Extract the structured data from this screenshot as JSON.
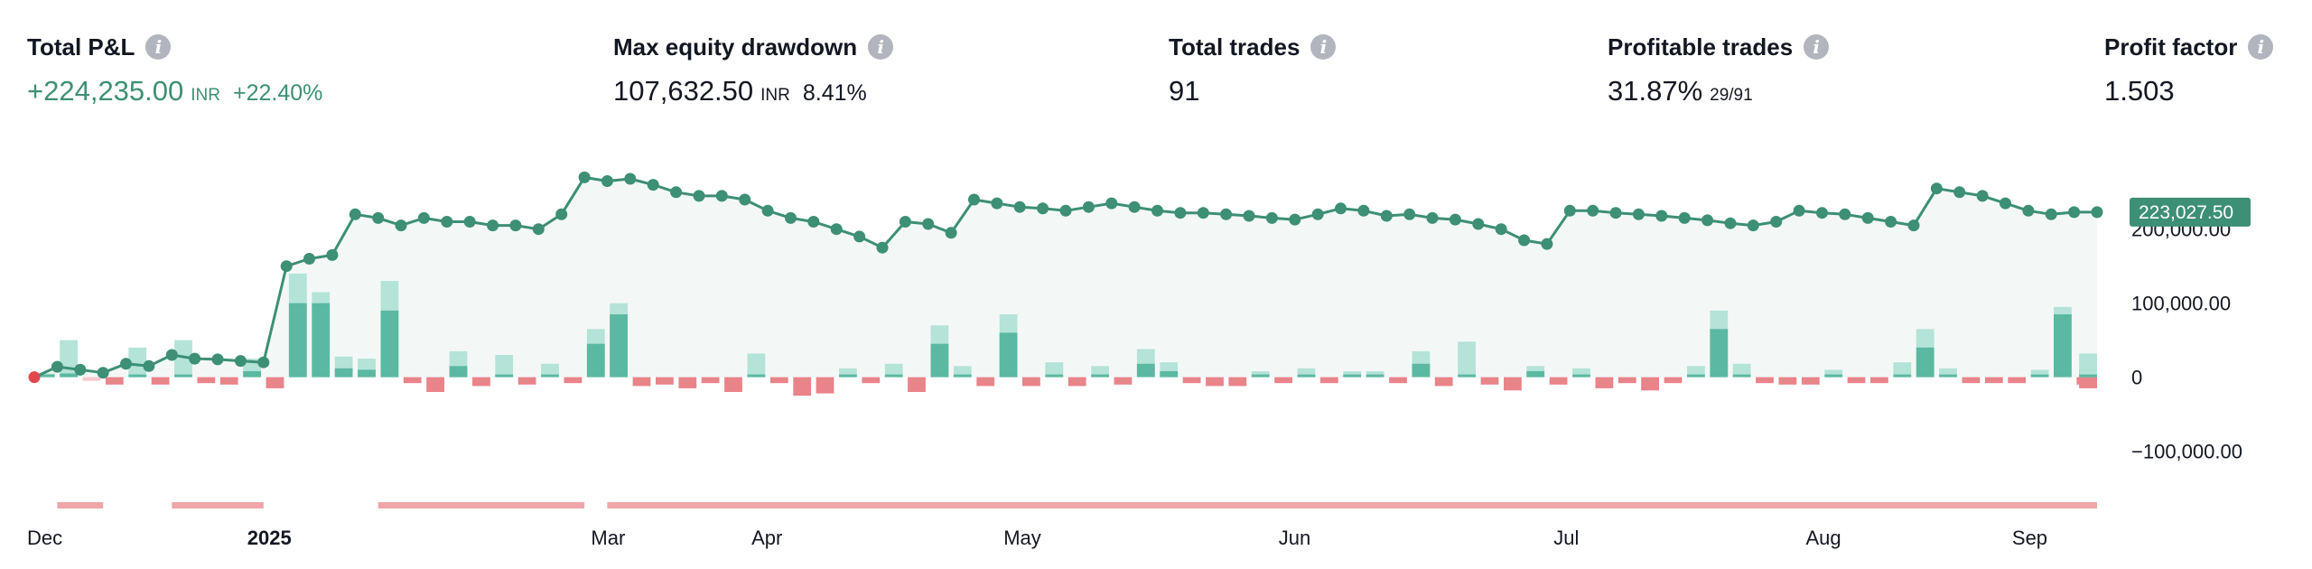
{
  "stats": {
    "total_pnl": {
      "label": "Total P&L",
      "value": "+224,235.00",
      "unit": "INR",
      "percent": "+22.40%"
    },
    "max_drawdown": {
      "label": "Max equity drawdown",
      "value": "107,632.50",
      "unit": "INR",
      "percent": "8.41%"
    },
    "total_trades": {
      "label": "Total trades",
      "value": "91"
    },
    "profitable_trades": {
      "label": "Profitable trades",
      "value": "31.87%",
      "sub": "29/91"
    },
    "profit_factor": {
      "label": "Profit factor",
      "value": "1.503"
    }
  },
  "icons": {
    "info": "info-icon"
  },
  "colors": {
    "equity": "#3d8f75",
    "equity_fill": "#f3f8f6",
    "bar_up": "#5bb9a1",
    "bar_up_light": "#b4e3d8",
    "bar_down": "#e8848a",
    "bar_down_light": "#f6cbce",
    "drawdown_strip": "#f0a6a8",
    "last_marker": "#3d8f75",
    "start_marker": "#e0484e"
  },
  "chart_data": {
    "type": "line",
    "title": "",
    "y_ticks": [
      "200,000.00",
      "100,000.00",
      "0",
      "−100,000.00"
    ],
    "y_tick_values": [
      200000,
      100000,
      0,
      -100000
    ],
    "ylim": [
      -125000,
      290000
    ],
    "x_months": [
      {
        "label": "Dec",
        "bold": false,
        "index": 0
      },
      {
        "label": "2025",
        "bold": true,
        "index": 10
      },
      {
        "label": "Mar",
        "bold": false,
        "index": 25
      },
      {
        "label": "Apr",
        "bold": false,
        "index": 32
      },
      {
        "label": "May",
        "bold": false,
        "index": 43
      },
      {
        "label": "Jun",
        "bold": false,
        "index": 55
      },
      {
        "label": "Jul",
        "bold": false,
        "index": 67
      },
      {
        "label": "Aug",
        "bold": false,
        "index": 78
      },
      {
        "label": "Sep",
        "bold": false,
        "index": 87
      }
    ],
    "last_value_label": "223,027.50",
    "equity": [
      0,
      14000,
      10000,
      6000,
      18000,
      15000,
      30000,
      25000,
      24000,
      22000,
      20000,
      150000,
      160000,
      165000,
      220000,
      215000,
      205000,
      215000,
      210000,
      210000,
      205000,
      205000,
      200000,
      220000,
      270000,
      265000,
      268000,
      260000,
      250000,
      245000,
      245000,
      240000,
      225000,
      215000,
      210000,
      200000,
      190000,
      175000,
      210000,
      207000,
      195000,
      240000,
      235000,
      230000,
      228000,
      225000,
      230000,
      235000,
      230000,
      225000,
      222000,
      222000,
      220000,
      218000,
      215000,
      213000,
      220000,
      228000,
      225000,
      218000,
      220000,
      215000,
      213000,
      207000,
      200000,
      185000,
      180000,
      225000,
      225000,
      222000,
      220000,
      218000,
      215000,
      212000,
      208000,
      205000,
      210000,
      225000,
      222000,
      220000,
      215000,
      210000,
      205000,
      255000,
      250000,
      245000,
      235000,
      225000,
      220000,
      223000,
      223027.5
    ],
    "bars": [
      {
        "dark": 0,
        "light": 5000
      },
      {
        "dark": 5000,
        "light": 50000
      },
      {
        "dark": 0,
        "light": -5000
      },
      {
        "dark": -10000,
        "light": 0
      },
      {
        "dark": 0,
        "light": 40000
      },
      {
        "dark": -10000,
        "light": 0
      },
      {
        "dark": 0,
        "light": 50000
      },
      {
        "dark": -8000,
        "light": 0
      },
      {
        "dark": -10000,
        "light": 0
      },
      {
        "dark": 8000,
        "light": 25000
      },
      {
        "dark": -15000,
        "light": 0
      },
      {
        "dark": 100000,
        "light": 140000
      },
      {
        "dark": 100000,
        "light": 115000
      },
      {
        "dark": 12000,
        "light": 28000
      },
      {
        "dark": 10000,
        "light": 25000
      },
      {
        "dark": 90000,
        "light": 130000
      },
      {
        "dark": -8000,
        "light": 0
      },
      {
        "dark": -20000,
        "light": 0
      },
      {
        "dark": 15000,
        "light": 35000
      },
      {
        "dark": -12000,
        "light": 0
      },
      {
        "dark": 0,
        "light": 30000
      },
      {
        "dark": -10000,
        "light": 0
      },
      {
        "dark": 0,
        "light": 18000
      },
      {
        "dark": -8000,
        "light": 0
      },
      {
        "dark": 45000,
        "light": 65000
      },
      {
        "dark": 85000,
        "light": 100000
      },
      {
        "dark": -12000,
        "light": 0
      },
      {
        "dark": -10000,
        "light": 0
      },
      {
        "dark": -15000,
        "light": 0
      },
      {
        "dark": -8000,
        "light": 0
      },
      {
        "dark": -20000,
        "light": 0
      },
      {
        "dark": 0,
        "light": 32000
      },
      {
        "dark": -8000,
        "light": 0
      },
      {
        "dark": -25000,
        "light": 0
      },
      {
        "dark": -22000,
        "light": 0
      },
      {
        "dark": 0,
        "light": 12000
      },
      {
        "dark": -8000,
        "light": 0
      },
      {
        "dark": 0,
        "light": 18000
      },
      {
        "dark": -20000,
        "light": 0
      },
      {
        "dark": 45000,
        "light": 70000
      },
      {
        "dark": 0,
        "light": 15000
      },
      {
        "dark": -12000,
        "light": 0
      },
      {
        "dark": 60000,
        "light": 85000
      },
      {
        "dark": -12000,
        "light": 0
      },
      {
        "dark": 0,
        "light": 20000
      },
      {
        "dark": -12000,
        "light": 0
      },
      {
        "dark": 0,
        "light": 15000
      },
      {
        "dark": -10000,
        "light": 0
      },
      {
        "dark": 18000,
        "light": 38000
      },
      {
        "dark": 8000,
        "light": 20000
      },
      {
        "dark": -8000,
        "light": 0
      },
      {
        "dark": -12000,
        "light": 0
      },
      {
        "dark": -12000,
        "light": 0
      },
      {
        "dark": 0,
        "light": 8000
      },
      {
        "dark": -8000,
        "light": 0
      },
      {
        "dark": 0,
        "light": 12000
      },
      {
        "dark": -8000,
        "light": 0
      },
      {
        "dark": 0,
        "light": 8000
      },
      {
        "dark": 0,
        "light": 8000
      },
      {
        "dark": -8000,
        "light": 0
      },
      {
        "dark": 18000,
        "light": 35000
      },
      {
        "dark": -12000,
        "light": 0
      },
      {
        "dark": 0,
        "light": 48000
      },
      {
        "dark": -10000,
        "light": 0
      },
      {
        "dark": -18000,
        "light": 0
      },
      {
        "dark": 8000,
        "light": 15000
      },
      {
        "dark": -10000,
        "light": 0
      },
      {
        "dark": 0,
        "light": 12000
      },
      {
        "dark": -15000,
        "light": 0
      },
      {
        "dark": -8000,
        "light": 0
      },
      {
        "dark": -18000,
        "light": 0
      },
      {
        "dark": -8000,
        "light": 0
      },
      {
        "dark": 0,
        "light": 15000
      },
      {
        "dark": 65000,
        "light": 90000
      },
      {
        "dark": 0,
        "light": 18000
      },
      {
        "dark": -8000,
        "light": 0
      },
      {
        "dark": -10000,
        "light": 0
      },
      {
        "dark": -10000,
        "light": 0
      },
      {
        "dark": 0,
        "light": 10000
      },
      {
        "dark": -8000,
        "light": 0
      },
      {
        "dark": -8000,
        "light": 0
      },
      {
        "dark": 0,
        "light": 20000
      },
      {
        "dark": 40000,
        "light": 65000
      },
      {
        "dark": 0,
        "light": 12000
      },
      {
        "dark": -8000,
        "light": 0
      },
      {
        "dark": -8000,
        "light": 0
      },
      {
        "dark": -8000,
        "light": 0
      },
      {
        "dark": 0,
        "light": 10000
      },
      {
        "dark": 85000,
        "light": 95000
      },
      {
        "dark": -10000,
        "light": 0
      },
      {
        "dark": 0,
        "light": 12000
      },
      {
        "dark": -15000,
        "light": 0
      },
      {
        "dark": -12000,
        "light": 0
      },
      {
        "dark": 0,
        "light": 8000
      },
      {
        "dark": -8000,
        "light": 0
      },
      {
        "dark": 10000,
        "light": 32000
      },
      {
        "dark": 0,
        "light": 10000
      }
    ],
    "drawdown_periods": [
      [
        1,
        3
      ],
      [
        6,
        10
      ],
      [
        15,
        24
      ],
      [
        25,
        90
      ]
    ]
  }
}
